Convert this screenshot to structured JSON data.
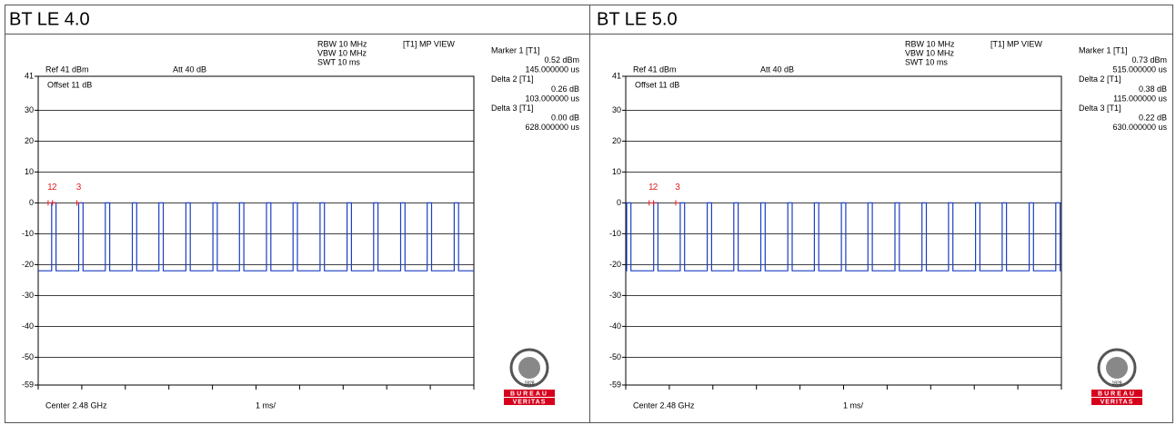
{
  "chart_data": [
    {
      "type": "line",
      "title": "BT LE 4.0",
      "settings": {
        "rbw": "RBW 10 MHz",
        "vbw": "VBW 10 MHz",
        "swt": "SWT 10 ms",
        "view": "[T1] MP VIEW",
        "ref": "Ref 41 dBm",
        "att": "Att 40 dB",
        "offset": "Offset 11 dB",
        "center": "Center 2.48 GHz",
        "div": "1 ms/"
      },
      "readout": [
        "Marker 1 [T1]",
        "0.52 dBm",
        "145.000000 us",
        "Delta 2 [T1]",
        "0.26 dB",
        "103.000000 us",
        "Delta 3 [T1]",
        "0.00 dB",
        "628.000000 us"
      ],
      "logo": [
        "1828",
        "BUREAU",
        "VERITAS"
      ],
      "color": "#1a3fc4",
      "marker_color": "#e02020",
      "xlim": [
        0,
        10
      ],
      "xticks": [
        0,
        1,
        2,
        3,
        4,
        5,
        6,
        7,
        8,
        9,
        10
      ],
      "ylim": [
        -59,
        41
      ],
      "yticks": [
        41,
        30,
        20,
        10,
        0,
        -10,
        -20,
        -30,
        -40,
        -50,
        -59
      ],
      "grid": true,
      "x": [
        0,
        0.31,
        0.31,
        0.41,
        0.41,
        0.93,
        0.93,
        1.03,
        1.03,
        1.54,
        1.54,
        1.64,
        1.64,
        2.16,
        2.16,
        2.26,
        2.26,
        2.77,
        2.77,
        2.87,
        2.87,
        3.39,
        3.39,
        3.49,
        3.49,
        4.01,
        4.01,
        4.11,
        4.11,
        4.62,
        4.62,
        4.72,
        4.72,
        5.24,
        5.24,
        5.34,
        5.34,
        5.85,
        5.85,
        5.95,
        5.95,
        6.47,
        6.47,
        6.57,
        6.57,
        7.09,
        7.09,
        7.19,
        7.19,
        7.7,
        7.7,
        7.8,
        7.8,
        8.32,
        8.32,
        8.42,
        8.42,
        8.93,
        8.93,
        9.03,
        9.03,
        9.55,
        9.55,
        9.65,
        9.65,
        10
      ],
      "values": [
        -22,
        -22,
        0,
        0,
        -22,
        -22,
        0,
        0,
        -22,
        -22,
        0,
        0,
        -22,
        -22,
        0,
        0,
        -22,
        -22,
        0,
        0,
        -22,
        -22,
        0,
        0,
        -22,
        -22,
        0,
        0,
        -22,
        -22,
        0,
        0,
        -22,
        -22,
        0,
        0,
        -22,
        -22,
        0,
        0,
        -22,
        -22,
        0,
        0,
        -22,
        -22,
        0,
        0,
        -22,
        -22,
        0,
        0,
        -22,
        -22,
        0,
        0,
        -22,
        -22,
        0,
        0,
        -22,
        -22,
        0,
        0,
        -22,
        -22
      ],
      "markers": [
        {
          "label": "1",
          "x": 0.27,
          "y": 0
        },
        {
          "label": "2",
          "x": 0.37,
          "y": 0
        },
        {
          "label": "3",
          "x": 0.93,
          "y": 0
        }
      ]
    },
    {
      "type": "line",
      "title": "BT LE 5.0",
      "settings": {
        "rbw": "RBW 10 MHz",
        "vbw": "VBW 10 MHz",
        "swt": "SWT 10 ms",
        "view": "[T1] MP VIEW",
        "ref": "Ref 41 dBm",
        "att": "Att 40 dB",
        "offset": "Offset 11 dB",
        "center": "Center 2.48 GHz",
        "div": "1 ms/"
      },
      "readout": [
        "Marker 1 [T1]",
        "0.73 dBm",
        "515.000000 us",
        "Delta 2 [T1]",
        "0.38 dB",
        "115.000000 us",
        "Delta 3 [T1]",
        "0.22 dB",
        "630.000000 us"
      ],
      "logo": [
        "1828",
        "BUREAU",
        "VERITAS"
      ],
      "color": "#1a3fc4",
      "marker_color": "#e02020",
      "xlim": [
        0,
        10
      ],
      "xticks": [
        0,
        1,
        2,
        3,
        4,
        5,
        6,
        7,
        8,
        9,
        10
      ],
      "ylim": [
        -59,
        41
      ],
      "yticks": [
        41,
        30,
        20,
        10,
        0,
        -10,
        -20,
        -30,
        -40,
        -50,
        -59
      ],
      "grid": true,
      "x": [
        0,
        0.02,
        0.02,
        0.12,
        0.12,
        0.64,
        0.64,
        0.74,
        0.74,
        1.25,
        1.25,
        1.35,
        1.35,
        1.87,
        1.87,
        1.97,
        1.97,
        2.48,
        2.48,
        2.58,
        2.58,
        3.1,
        3.1,
        3.2,
        3.2,
        3.72,
        3.72,
        3.82,
        3.82,
        4.33,
        4.33,
        4.43,
        4.43,
        4.95,
        4.95,
        5.05,
        5.05,
        5.56,
        5.56,
        5.66,
        5.66,
        6.18,
        6.18,
        6.28,
        6.28,
        6.8,
        6.8,
        6.9,
        6.9,
        7.41,
        7.41,
        7.51,
        7.51,
        8.03,
        8.03,
        8.13,
        8.13,
        8.64,
        8.64,
        8.74,
        8.74,
        9.26,
        9.26,
        9.36,
        9.36,
        9.87,
        9.87,
        9.97,
        9.97,
        10
      ],
      "values": [
        -22,
        -22,
        0,
        0,
        -22,
        -22,
        0,
        0,
        -22,
        -22,
        0,
        0,
        -22,
        -22,
        0,
        0,
        -22,
        -22,
        0,
        0,
        -22,
        -22,
        0,
        0,
        -22,
        -22,
        0,
        0,
        -22,
        -22,
        0,
        0,
        -22,
        -22,
        0,
        0,
        -22,
        -22,
        0,
        0,
        -22,
        -22,
        0,
        0,
        -22,
        -22,
        0,
        0,
        -22,
        -22,
        0,
        0,
        -22,
        -22,
        0,
        0,
        -22,
        -22,
        0,
        0,
        -22,
        -22,
        0,
        0,
        -22,
        -22,
        0,
        0,
        -22,
        -22
      ],
      "markers": [
        {
          "label": "1",
          "x": 0.58,
          "y": 0
        },
        {
          "label": "2",
          "x": 0.68,
          "y": 0
        },
        {
          "label": "3",
          "x": 1.19,
          "y": 0
        }
      ]
    }
  ]
}
